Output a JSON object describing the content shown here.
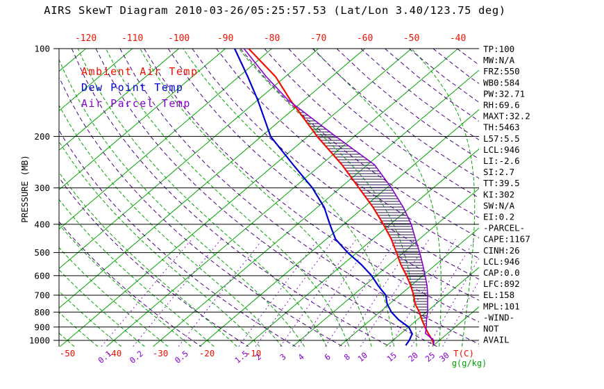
{
  "title": "AIRS SkewT Diagram 2010-03-26/05:25:57.53 (Lat/Lon 3.40/123.75 deg)",
  "legend": {
    "items": [
      {
        "label": "Ambient Air Temp",
        "color": "#ee1100"
      },
      {
        "label": "Dew Point Temp",
        "color": "#0000cc"
      },
      {
        "label": "Air Parcel Temp",
        "color": "#8800cc"
      }
    ]
  },
  "axes": {
    "pressure_axis_label": "PRESSURE (MB)",
    "pressure_ticks": [
      "100",
      "200",
      "300",
      "400",
      "500",
      "600",
      "700",
      "800",
      "900",
      "1000"
    ],
    "top_temperature_ticks": [
      "-120",
      "-110",
      "-100",
      "-90",
      "-80",
      "-70",
      "-60",
      "-50",
      "-40"
    ],
    "bottom_temperature_ticks": [
      "-50",
      "-40",
      "-30",
      "-20",
      "-10"
    ],
    "temperature_unit_label": "T(C)",
    "mixing_ratio_ticks": [
      "0.1",
      "0.2",
      "0.5",
      "1.5",
      "2",
      "3",
      "4",
      "6",
      "8",
      "10",
      "15",
      "20",
      "25",
      "30"
    ],
    "mixing_ratio_unit_label": "g(g/kg)"
  },
  "stats_panel": {
    "lines": [
      "TP:100",
      "MW:N/A",
      "FRZ:550",
      "WB0:584",
      "PW:32.71",
      "RH:69.6",
      "MAXT:32.2",
      "TH:5463",
      "L57:5.5",
      "LCL:946",
      "LI:-2.6",
      "SI:2.7",
      "TT:39.5",
      "KI:302",
      "SW:N/A",
      "EI:0.2",
      "-PARCEL-",
      "CAPE:1167",
      "CINH:26",
      "LCL:946",
      "CAP:0.0",
      "LFC:892",
      "EL:158",
      "MPL:101",
      "-WIND-",
      "NOT",
      "AVAIL"
    ]
  },
  "chart_data": {
    "type": "line",
    "projection": "skew-t-log-p",
    "x_axis": {
      "label": "T(C)",
      "unit": "degC",
      "skew": "45deg",
      "range_at_1000mb": [
        -52,
        38
      ]
    },
    "y_axis": {
      "label": "PRESSURE (MB)",
      "scale": "log",
      "range_mb": [
        100,
        1050
      ]
    },
    "grid": {
      "pressure_lines_mb": [
        100,
        200,
        300,
        400,
        500,
        600,
        700,
        800,
        900,
        1000
      ],
      "isotherm_step_C": 10,
      "isotherm_color": "#00a400",
      "dry_adiabat_theta_K_range": [
        250,
        520,
        10
      ],
      "dry_adiabat_color": "#4b0082",
      "moist_adiabat_start_C_range": [
        -60,
        40,
        5
      ],
      "moist_adiabat_color": "#00a400",
      "mixing_ratio_g_kg": [
        0.1,
        0.2,
        0.5,
        1.5,
        2,
        3,
        4,
        6,
        8,
        10,
        15,
        20,
        25,
        30
      ],
      "mixing_ratio_color": "#8400c8"
    },
    "series": [
      {
        "name": "Ambient Air Temp",
        "color": "#ee1100",
        "points_p_t": [
          [
            1040,
            30
          ],
          [
            1000,
            28.5
          ],
          [
            950,
            26
          ],
          [
            900,
            23.5
          ],
          [
            850,
            21
          ],
          [
            800,
            18.5
          ],
          [
            750,
            15.5
          ],
          [
            700,
            13
          ],
          [
            650,
            10
          ],
          [
            600,
            6.5
          ],
          [
            550,
            2.5
          ],
          [
            500,
            -1.5
          ],
          [
            450,
            -6
          ],
          [
            400,
            -11.5
          ],
          [
            350,
            -18
          ],
          [
            300,
            -26
          ],
          [
            250,
            -35.5
          ],
          [
            200,
            -48
          ],
          [
            150,
            -63
          ],
          [
            125,
            -72
          ],
          [
            100,
            -85
          ]
        ]
      },
      {
        "name": "Dew Point Temp",
        "color": "#0000cc",
        "points_p_t": [
          [
            1040,
            24
          ],
          [
            1000,
            23.5
          ],
          [
            950,
            22.5
          ],
          [
            900,
            20
          ],
          [
            850,
            16
          ],
          [
            800,
            12.5
          ],
          [
            750,
            9.5
          ],
          [
            700,
            7
          ],
          [
            650,
            3
          ],
          [
            600,
            -1
          ],
          [
            550,
            -6
          ],
          [
            500,
            -12
          ],
          [
            450,
            -18
          ],
          [
            400,
            -23
          ],
          [
            350,
            -28.5
          ],
          [
            300,
            -36
          ],
          [
            250,
            -46
          ],
          [
            200,
            -58
          ],
          [
            150,
            -70
          ],
          [
            125,
            -78
          ],
          [
            100,
            -88
          ]
        ]
      },
      {
        "name": "Air Parcel Temp",
        "color": "#8800cc",
        "points_p_t": [
          [
            1040,
            30
          ],
          [
            1000,
            28.8
          ],
          [
            946,
            25.2
          ],
          [
            900,
            23.8
          ],
          [
            850,
            22
          ],
          [
            800,
            20.3
          ],
          [
            750,
            18.2
          ],
          [
            700,
            16
          ],
          [
            650,
            13.5
          ],
          [
            600,
            10.5
          ],
          [
            550,
            7.2
          ],
          [
            500,
            3.5
          ],
          [
            450,
            -0.8
          ],
          [
            400,
            -5.5
          ],
          [
            350,
            -11.5
          ],
          [
            300,
            -19
          ],
          [
            250,
            -28.5
          ],
          [
            200,
            -44
          ],
          [
            150,
            -63.5
          ],
          [
            125,
            -74
          ],
          [
            100,
            -86
          ]
        ]
      }
    ],
    "cape_hatch": {
      "from_mb": 892,
      "to_mb": 158,
      "between": [
        "Ambient Air Temp",
        "Air Parcel Temp"
      ],
      "note": "positive area (CAPE) hatched between ambient and parcel curves"
    }
  }
}
